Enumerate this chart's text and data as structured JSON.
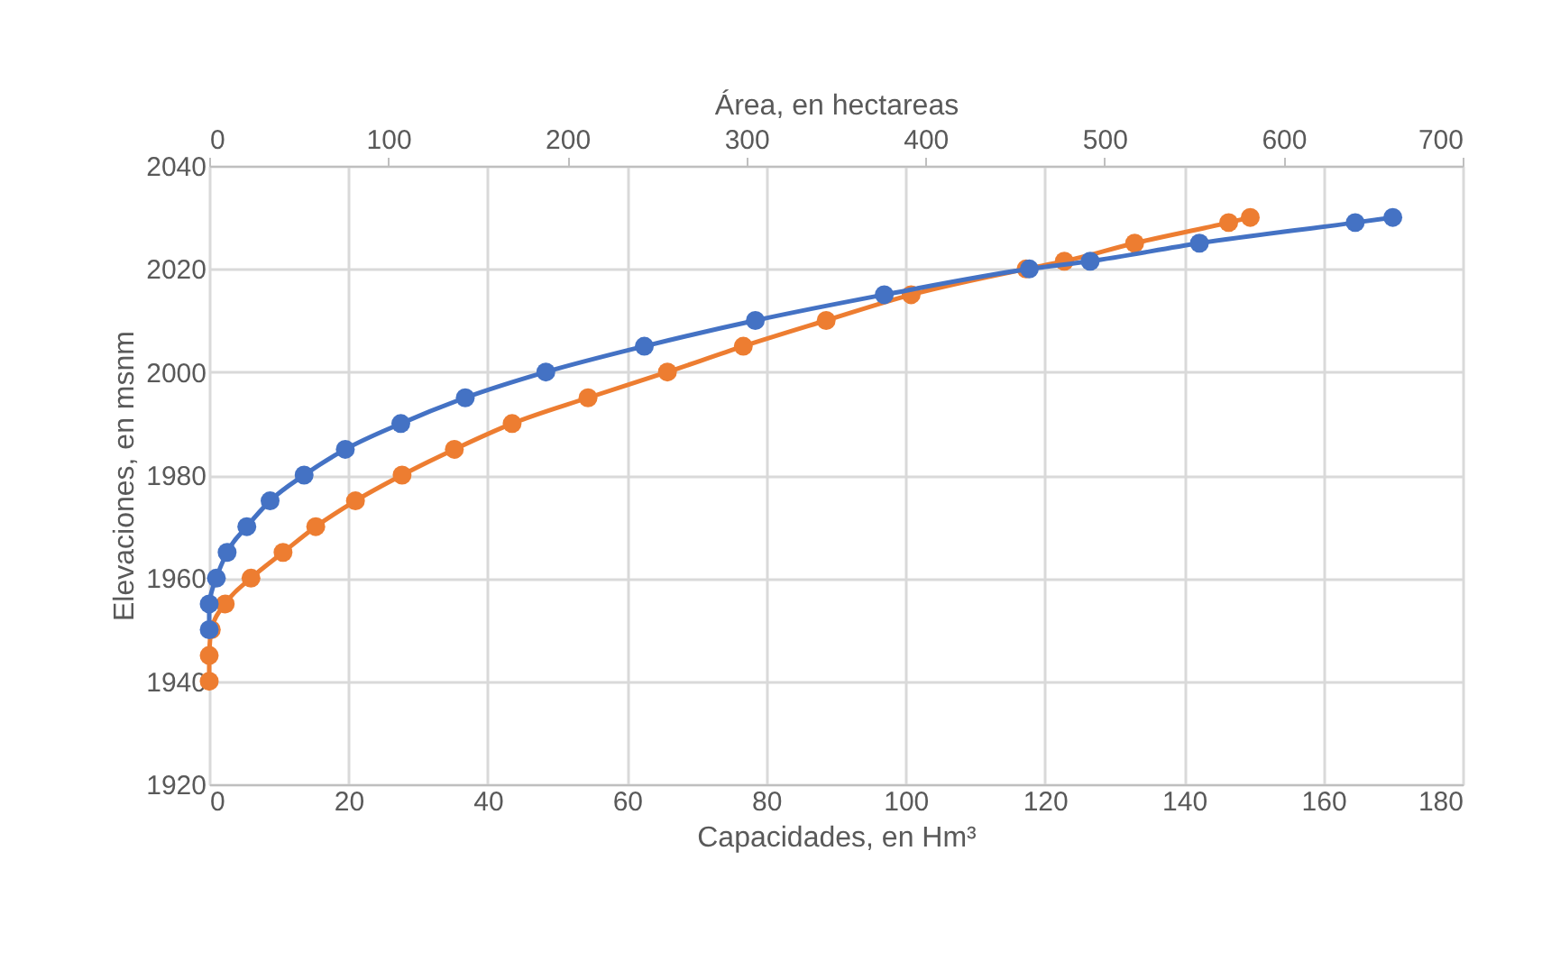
{
  "chart_data": {
    "type": "line",
    "xlabel": "Capacidades, en Hm³",
    "x2label": "Área, en hectareas",
    "ylabel": "Elevaciones, en msnm",
    "xlim": [
      0,
      180
    ],
    "xticks": [
      0,
      20,
      40,
      60,
      80,
      100,
      120,
      140,
      160,
      180
    ],
    "x2lim": [
      0,
      700
    ],
    "x2ticks": [
      0,
      100,
      200,
      300,
      400,
      500,
      600,
      700
    ],
    "ylim": [
      1920,
      2040
    ],
    "yticks": [
      1920,
      1940,
      1960,
      1980,
      2000,
      2020,
      2040
    ],
    "grid": true,
    "marker": "circle",
    "line_style": "solid",
    "series": [
      {
        "color": "#4472c4",
        "axis": "x2",
        "x": [
          0,
          0,
          4,
          10,
          21,
          34,
          53,
          76,
          107,
          143,
          188,
          243,
          305,
          377,
          458,
          492,
          553,
          640,
          661
        ],
        "values": [
          1950,
          1955,
          1960,
          1965,
          1970,
          1975,
          1980,
          1985,
          1990,
          1995,
          2000,
          2005,
          2010,
          2015,
          2020,
          2021.5,
          2025,
          2029,
          2030
        ]
      },
      {
        "color": "#ed7d31",
        "x": [
          0,
          0,
          0.3,
          2.3,
          6,
          10.6,
          15.3,
          21,
          27.7,
          35.2,
          43.5,
          54.4,
          65.8,
          76.7,
          88.6,
          100.8,
          117.3,
          122.8,
          132.9,
          146.4,
          149.5
        ],
        "values": [
          1940,
          1945,
          1950,
          1955,
          1960,
          1965,
          1970,
          1975,
          1980,
          1985,
          1990,
          1995,
          2000,
          2005,
          2010,
          2015,
          2020,
          2021.5,
          2025,
          2029,
          2030
        ]
      }
    ]
  }
}
